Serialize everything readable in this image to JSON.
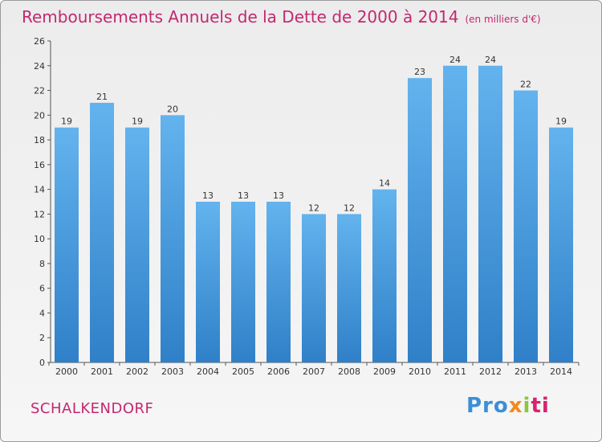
{
  "title": "Remboursements Annuels de la Dette de 2000 à 2014",
  "unit_note": "(en milliers d'€)",
  "commune": "SCHALKENDORF",
  "logo": {
    "p1": "Pro",
    "p2": "x",
    "p3": "i",
    "p4": "ti"
  },
  "colors": {
    "title": "#c22870",
    "bar_top": "#63b3ee",
    "bar_bottom": "#2f80c8"
  },
  "chart_data": {
    "type": "bar",
    "title": "Remboursements Annuels de la Dette de 2000 à 2014",
    "xlabel": "",
    "ylabel": "(en milliers d'€)",
    "categories": [
      "2000",
      "2001",
      "2002",
      "2003",
      "2004",
      "2005",
      "2006",
      "2007",
      "2008",
      "2009",
      "2010",
      "2011",
      "2012",
      "2013",
      "2014"
    ],
    "values": [
      19,
      21,
      19,
      20,
      13,
      13,
      13,
      12,
      12,
      14,
      23,
      24,
      24,
      22,
      19
    ],
    "ylim": [
      0,
      26
    ],
    "yticks": [
      0,
      2,
      4,
      6,
      8,
      10,
      12,
      14,
      16,
      18,
      20,
      22,
      24,
      26
    ],
    "grid": false
  }
}
